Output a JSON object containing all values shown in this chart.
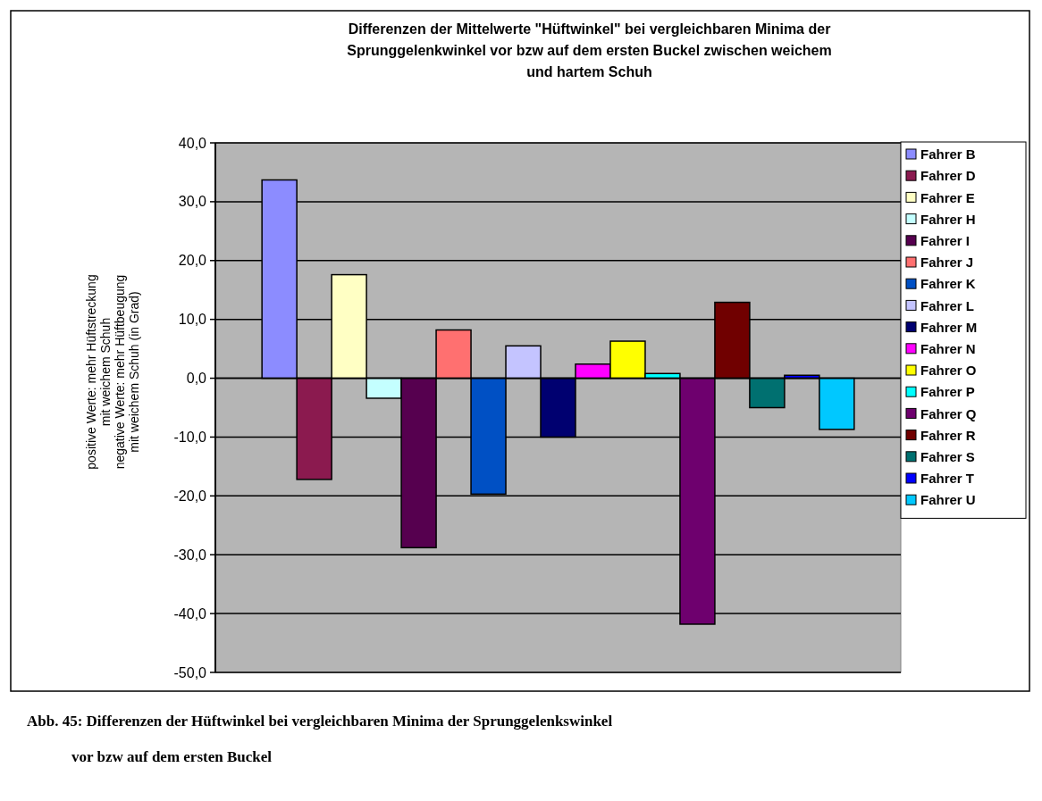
{
  "chart_data": {
    "type": "bar",
    "title": "Differenzen der Mittelwerte \"Hüftwinkel\" bei vergleichbaren Minima der\nSprunggelenkwinkel vor bzw auf dem ersten Buckel zwischen weichem\nund hartem Schuh",
    "ylabel": "positive Werte: mehr Hüftstreckung\nmit weichem Schuh\nnegative Werte: mehr Hüftbeugung\nmit weichem Schuh (in Grad)",
    "categories": [
      null
    ],
    "series": [
      {
        "name": "Fahrer B",
        "color": "#8c8cff",
        "values": [
          33.7
        ]
      },
      {
        "name": "Fahrer D",
        "color": "#8b1a4f",
        "values": [
          -17.2
        ]
      },
      {
        "name": "Fahrer E",
        "color": "#ffffc4",
        "values": [
          17.6
        ]
      },
      {
        "name": "Fahrer H",
        "color": "#c4ffff",
        "values": [
          -3.4
        ]
      },
      {
        "name": "Fahrer I",
        "color": "#56004f",
        "values": [
          -28.8
        ]
      },
      {
        "name": "Fahrer J",
        "color": "#ff7070",
        "values": [
          8.2
        ]
      },
      {
        "name": "Fahrer K",
        "color": "#0050c4",
        "values": [
          -19.7
        ]
      },
      {
        "name": "Fahrer L",
        "color": "#c4c4ff",
        "values": [
          5.5
        ]
      },
      {
        "name": "Fahrer M",
        "color": "#000070",
        "values": [
          -10.0
        ]
      },
      {
        "name": "Fahrer N",
        "color": "#ff00ff",
        "values": [
          2.4
        ]
      },
      {
        "name": "Fahrer O",
        "color": "#ffff00",
        "values": [
          6.3
        ]
      },
      {
        "name": "Fahrer P",
        "color": "#00ffff",
        "values": [
          0.8
        ]
      },
      {
        "name": "Fahrer Q",
        "color": "#6e006e",
        "values": [
          -41.8
        ]
      },
      {
        "name": "Fahrer R",
        "color": "#700000",
        "values": [
          12.9
        ]
      },
      {
        "name": "Fahrer S",
        "color": "#007070",
        "values": [
          -5.0
        ]
      },
      {
        "name": "Fahrer T",
        "color": "#0000ff",
        "values": [
          0.5
        ]
      },
      {
        "name": "Fahrer U",
        "color": "#00c8ff",
        "values": [
          -8.7
        ]
      }
    ],
    "ylim": [
      -50,
      40
    ],
    "yticks": [
      {
        "value": -50,
        "label": "-50,0"
      },
      {
        "value": -40,
        "label": "-40,0"
      },
      {
        "value": -30,
        "label": "-30,0"
      },
      {
        "value": -20,
        "label": "-20,0"
      },
      {
        "value": -10,
        "label": "-10,0"
      },
      {
        "value": 0,
        "label": "0,0"
      },
      {
        "value": 10,
        "label": "10,0"
      },
      {
        "value": 20,
        "label": "20,0"
      },
      {
        "value": 30,
        "label": "30,0"
      },
      {
        "value": 40,
        "label": "40,0"
      }
    ],
    "grid": "y",
    "legend": "right",
    "annotations": [
      "Abb. 45: Differenzen der Hüftwinkel bei vergleichbaren Minima der Sprunggelenkswinkel\nvor bzw auf dem ersten Buckel"
    ]
  }
}
